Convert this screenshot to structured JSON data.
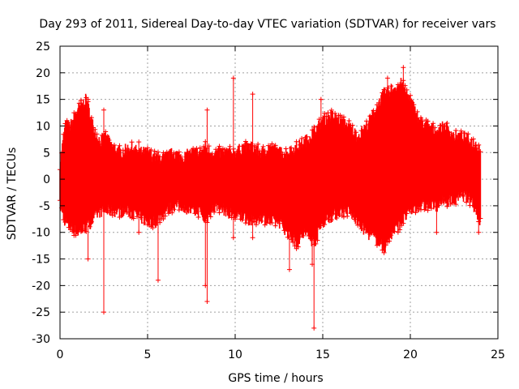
{
  "chart_data": {
    "type": "scatter",
    "title": "Day 293 of 2011, Sidereal Day-to-day VTEC variation (SDTVAR) for receiver vars",
    "xlabel": "GPS time / hours",
    "ylabel": "SDTVAR / TECUs",
    "xlim": [
      0,
      25
    ],
    "ylim": [
      -30,
      25
    ],
    "xticks": [
      0,
      5,
      10,
      15,
      20,
      25
    ],
    "yticks": [
      -30,
      -25,
      -20,
      -15,
      -10,
      -5,
      0,
      5,
      10,
      15,
      20,
      25
    ],
    "grid": true,
    "marker": "+",
    "color": "#ff0000",
    "series": [
      {
        "name": "SDTVAR",
        "envelope": {
          "x": [
            0.0,
            0.3,
            0.6,
            1.0,
            1.5,
            1.8,
            2.0,
            2.3,
            2.6,
            3.0,
            3.5,
            4.0,
            4.5,
            5.0,
            5.5,
            6.0,
            6.5,
            7.0,
            7.5,
            8.0,
            8.3,
            8.6,
            9.0,
            9.5,
            10.0,
            10.5,
            11.0,
            11.5,
            12.0,
            12.5,
            13.0,
            13.5,
            14.0,
            14.5,
            15.0,
            15.5,
            16.0,
            16.5,
            17.0,
            17.5,
            18.0,
            18.5,
            19.0,
            19.5,
            20.0,
            20.5,
            21.0,
            21.5,
            22.0,
            22.5,
            23.0,
            23.5,
            24.0
          ],
          "upper": [
            3,
            10,
            10,
            13,
            15,
            11,
            9,
            7,
            8,
            6,
            5,
            6,
            5,
            5,
            4,
            4,
            5,
            4,
            5,
            5,
            6,
            5,
            5,
            5,
            5,
            6,
            6,
            5,
            6,
            5,
            5,
            6,
            7,
            9,
            11,
            12,
            11,
            10,
            8,
            10,
            13,
            16,
            17,
            18,
            15,
            11,
            10,
            9,
            10,
            8,
            8,
            7,
            6
          ],
          "lower": [
            -5,
            -8,
            -9,
            -10,
            -9,
            -8,
            -7,
            -6,
            -6,
            -6,
            -6,
            -6,
            -7,
            -8,
            -8,
            -6,
            -5,
            -5,
            -6,
            -6,
            -8,
            -6,
            -5,
            -6,
            -7,
            -7,
            -8,
            -7,
            -8,
            -8,
            -10,
            -12,
            -10,
            -12,
            -8,
            -7,
            -6,
            -6,
            -8,
            -10,
            -11,
            -13,
            -10,
            -8,
            -6,
            -5,
            -5,
            -5,
            -4,
            -4,
            -3,
            -4,
            -8
          ]
        },
        "spikes": [
          {
            "x": 1.6,
            "values": [
              15,
              -15
            ]
          },
          {
            "x": 2.5,
            "values": [
              13,
              -25
            ]
          },
          {
            "x": 4.5,
            "values": [
              7,
              -10
            ]
          },
          {
            "x": 5.6,
            "values": [
              -19
            ]
          },
          {
            "x": 8.4,
            "values": [
              13,
              -23
            ]
          },
          {
            "x": 8.3,
            "values": [
              -20
            ]
          },
          {
            "x": 9.9,
            "values": [
              19,
              -11
            ]
          },
          {
            "x": 11.0,
            "values": [
              16,
              -11
            ]
          },
          {
            "x": 13.1,
            "values": [
              -17
            ]
          },
          {
            "x": 14.4,
            "values": [
              -16
            ]
          },
          {
            "x": 14.5,
            "values": [
              -28
            ]
          },
          {
            "x": 14.9,
            "values": [
              15
            ]
          },
          {
            "x": 18.7,
            "values": [
              19
            ]
          },
          {
            "x": 19.6,
            "values": [
              21
            ]
          },
          {
            "x": 21.5,
            "values": [
              -10
            ]
          },
          {
            "x": 23.0,
            "values": [
              -3
            ]
          },
          {
            "x": 23.9,
            "values": [
              -10
            ]
          }
        ]
      }
    ]
  }
}
